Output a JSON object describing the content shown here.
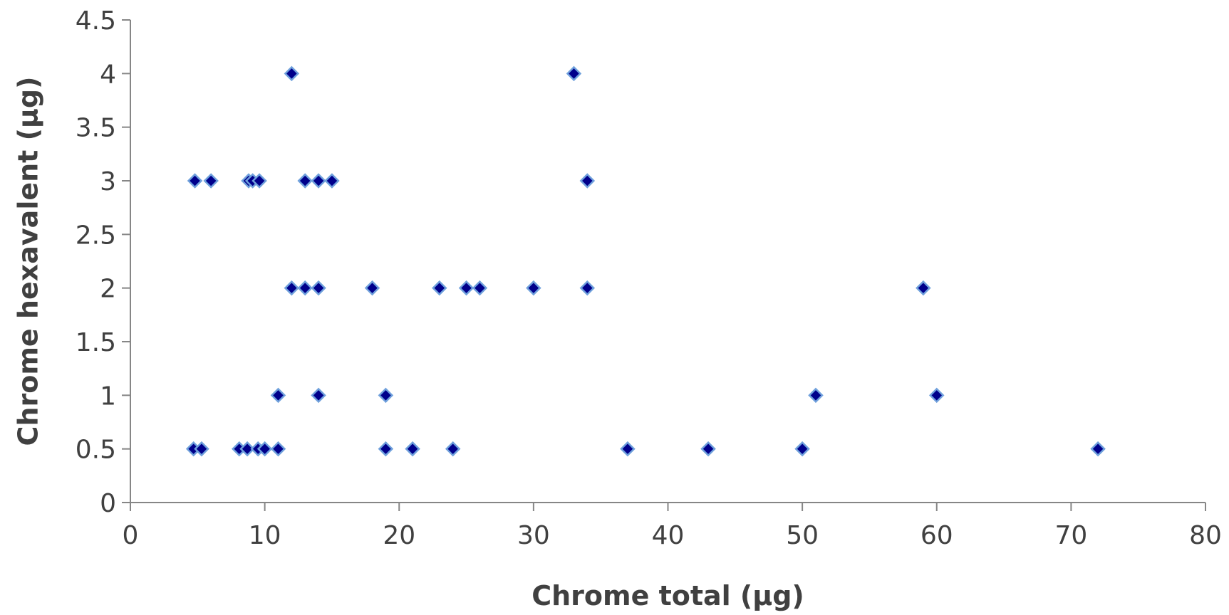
{
  "chart_data": {
    "type": "scatter",
    "title": "",
    "xlabel": "Chrome total (µg)",
    "ylabel": "Chrome hexavalent (µg)",
    "xlim": [
      0,
      80
    ],
    "ylim": [
      0,
      4.5
    ],
    "x_ticks": [
      "0",
      "10",
      "20",
      "30",
      "40",
      "50",
      "60",
      "70",
      "80"
    ],
    "y_ticks": [
      "0",
      "0.5",
      "1",
      "1.5",
      "2",
      "2.5",
      "3",
      "3.5",
      "4",
      "4.5"
    ],
    "grid": false,
    "legend": "none",
    "marker": "diamond",
    "marker_color": "#00008B",
    "marker_edge_color": "#6FA0DC",
    "series": [
      {
        "points": [
          {
            "x": 12,
            "y": 4
          },
          {
            "x": 33,
            "y": 4
          },
          {
            "x": 4.8,
            "y": 3
          },
          {
            "x": 6,
            "y": 3
          },
          {
            "x": 8.8,
            "y": 3
          },
          {
            "x": 9.1,
            "y": 3
          },
          {
            "x": 9.6,
            "y": 3
          },
          {
            "x": 13,
            "y": 3
          },
          {
            "x": 14,
            "y": 3
          },
          {
            "x": 15,
            "y": 3
          },
          {
            "x": 34,
            "y": 3
          },
          {
            "x": 12,
            "y": 2
          },
          {
            "x": 13,
            "y": 2
          },
          {
            "x": 14,
            "y": 2
          },
          {
            "x": 18,
            "y": 2
          },
          {
            "x": 23,
            "y": 2
          },
          {
            "x": 25,
            "y": 2
          },
          {
            "x": 26,
            "y": 2
          },
          {
            "x": 30,
            "y": 2
          },
          {
            "x": 34,
            "y": 2
          },
          {
            "x": 59,
            "y": 2
          },
          {
            "x": 11,
            "y": 1
          },
          {
            "x": 14,
            "y": 1
          },
          {
            "x": 19,
            "y": 1
          },
          {
            "x": 51,
            "y": 1
          },
          {
            "x": 60,
            "y": 1
          },
          {
            "x": 4.7,
            "y": 0.5
          },
          {
            "x": 5.3,
            "y": 0.5
          },
          {
            "x": 8.1,
            "y": 0.5
          },
          {
            "x": 8.7,
            "y": 0.5
          },
          {
            "x": 9.5,
            "y": 0.5
          },
          {
            "x": 10,
            "y": 0.5
          },
          {
            "x": 11,
            "y": 0.5
          },
          {
            "x": 19,
            "y": 0.5
          },
          {
            "x": 21,
            "y": 0.5
          },
          {
            "x": 24,
            "y": 0.5
          },
          {
            "x": 37,
            "y": 0.5
          },
          {
            "x": 43,
            "y": 0.5
          },
          {
            "x": 50,
            "y": 0.5
          },
          {
            "x": 72,
            "y": 0.5
          }
        ]
      }
    ]
  }
}
